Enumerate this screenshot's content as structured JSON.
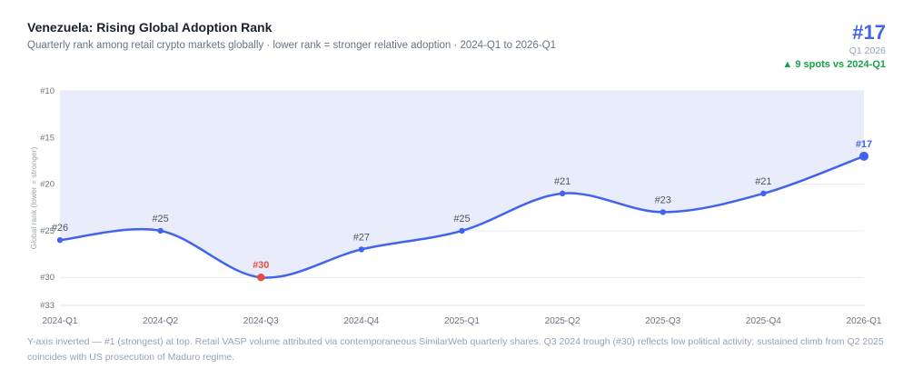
{
  "header": {
    "title": "Venezuela: Rising Global Adoption Rank",
    "subtitle": "Quarterly rank among retail crypto markets globally · lower rank = stronger relative adoption · 2024-Q1 to 2026-Q1"
  },
  "kpi": {
    "value": "#17",
    "period": "Q1 2026",
    "delta": "▲ 9 spots vs 2024-Q1"
  },
  "colors": {
    "accent_blue": "#4263eb",
    "area_fill": "#e9edfb",
    "negative_red": "#e74c3c",
    "positive_green": "#16a34a",
    "point_label": "#4b5563",
    "axis_text": "#6b7280",
    "grid_line": "#e7eaf1",
    "axis_line": "#dfe3ea",
    "ylabel_text": "#9aa3b2"
  },
  "chart_data": {
    "type": "line",
    "categories": [
      "2024-Q1",
      "2024-Q2",
      "2024-Q3",
      "2024-Q4",
      "2025-Q1",
      "2025-Q2",
      "2025-Q3",
      "2025-Q4",
      "2026-Q1"
    ],
    "values": [
      26,
      25,
      30,
      27,
      25,
      21,
      23,
      21,
      17
    ],
    "point_labels": [
      "#26",
      "#25",
      "#30",
      "#27",
      "#25",
      "#21",
      "#23",
      "#21",
      "#17"
    ],
    "lowest_point_index": 2,
    "ylabel": "Global rank (lower = stronger)",
    "y_ticks": [
      10,
      15,
      20,
      25,
      30,
      33
    ],
    "y_tick_labels": [
      "#10",
      "#15",
      "#20",
      "#25",
      "#30",
      "#33"
    ],
    "ylim": [
      10,
      33
    ],
    "inverted_axis": true,
    "grid": true,
    "legend": "none",
    "title": "Venezuela: Rising Global Adoption Rank",
    "xlabel": ""
  },
  "footnote": "Y-axis inverted — #1 (strongest) at top. Retail VASP volume attributed via contemporaneous SimilarWeb quarterly shares. Q3 2024 trough (#30) reflects low political activity; sustained climb from Q2 2025 coincides with US prosecution of Maduro regime."
}
